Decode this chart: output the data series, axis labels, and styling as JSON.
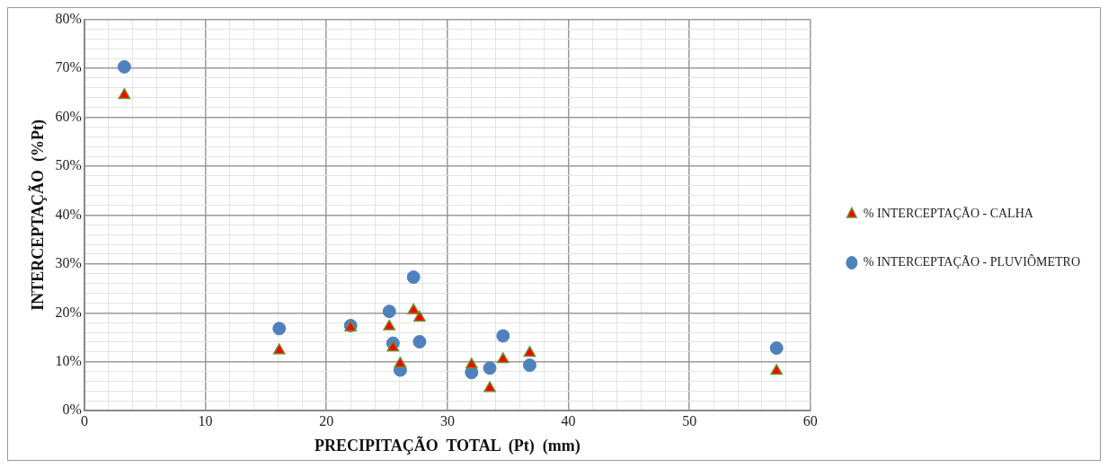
{
  "chart_data": {
    "type": "scatter",
    "xlabel": "PRECIPITAÇÃO  TOTAL  (Pt)  (mm)",
    "ylabel": "INTERCEPTAÇÃO  (%Pt)",
    "xlim": [
      0,
      60
    ],
    "ylim": [
      0,
      80
    ],
    "xticks": [
      0,
      {
        "value": 2,
        "label": null
      },
      {
        "value": 4,
        "label": null
      },
      {
        "value": 6,
        "label": null
      },
      {
        "value": 8,
        "label": null
      },
      10,
      {
        "value": 12,
        "label": null
      },
      {
        "value": 14,
        "label": null
      },
      {
        "value": 16,
        "label": null
      },
      {
        "value": 18,
        "label": null
      },
      20,
      {
        "value": 22,
        "label": null
      },
      {
        "value": 24,
        "label": null
      },
      {
        "value": 26,
        "label": null
      },
      {
        "value": 28,
        "label": null
      },
      30,
      {
        "value": 32,
        "label": null
      },
      {
        "value": 34,
        "label": null
      },
      {
        "value": 36,
        "label": null
      },
      {
        "value": 38,
        "label": null
      },
      40,
      {
        "value": 42,
        "label": null
      },
      {
        "value": 44,
        "label": null
      },
      {
        "value": 46,
        "label": null
      },
      {
        "value": 48,
        "label": null
      },
      50,
      {
        "value": 52,
        "label": null
      },
      {
        "value": 54,
        "label": null
      },
      {
        "value": 56,
        "label": null
      },
      {
        "value": 58,
        "label": null
      },
      60
    ],
    "yticks": [
      {
        "value": 0,
        "label": "0%"
      },
      {
        "value": 2,
        "label": null
      },
      {
        "value": 4,
        "label": null
      },
      {
        "value": 6,
        "label": null
      },
      {
        "value": 8,
        "label": null
      },
      {
        "value": 10,
        "label": "10%"
      },
      {
        "value": 12,
        "label": null
      },
      {
        "value": 14,
        "label": null
      },
      {
        "value": 16,
        "label": null
      },
      {
        "value": 18,
        "label": null
      },
      {
        "value": 20,
        "label": "20%"
      },
      {
        "value": 22,
        "label": null
      },
      {
        "value": 24,
        "label": null
      },
      {
        "value": 26,
        "label": null
      },
      {
        "value": 28,
        "label": null
      },
      {
        "value": 30,
        "label": "30%"
      },
      {
        "value": 32,
        "label": null
      },
      {
        "value": 34,
        "label": null
      },
      {
        "value": 36,
        "label": null
      },
      {
        "value": 38,
        "label": null
      },
      {
        "value": 40,
        "label": "40%"
      },
      {
        "value": 42,
        "label": null
      },
      {
        "value": 44,
        "label": null
      },
      {
        "value": 46,
        "label": null
      },
      {
        "value": 48,
        "label": null
      },
      {
        "value": 50,
        "label": "50%"
      },
      {
        "value": 52,
        "label": null
      },
      {
        "value": 54,
        "label": null
      },
      {
        "value": 56,
        "label": null
      },
      {
        "value": 58,
        "label": null
      },
      {
        "value": 60,
        "label": "60%"
      },
      {
        "value": 62,
        "label": null
      },
      {
        "value": 64,
        "label": null
      },
      {
        "value": 66,
        "label": null
      },
      {
        "value": 68,
        "label": null
      },
      {
        "value": 70,
        "label": "70%"
      },
      {
        "value": 72,
        "label": null
      },
      {
        "value": 74,
        "label": null
      },
      {
        "value": 76,
        "label": null
      },
      {
        "value": 78,
        "label": null
      },
      {
        "value": 80,
        "label": "80%"
      }
    ],
    "grid": true,
    "legend": "right",
    "series": [
      {
        "name": "% INTERCEPTAÇÃO - CALHA",
        "color": "#ff0000",
        "marker": "triangle",
        "x": [
          3.3,
          16.1,
          22,
          25.2,
          25.5,
          26.1,
          27.2,
          27.7,
          32,
          33.5,
          34.6,
          36.8,
          57.2
        ],
        "values": [
          64.5,
          12.3,
          17,
          17.2,
          12.9,
          9.6,
          20.5,
          19,
          9.4,
          4.6,
          10.5,
          11.8,
          8.1
        ]
      },
      {
        "name": "% INTERCEPTAÇÃO - PLUVIÔMETRO",
        "color": "#4f81bd",
        "marker": "circle",
        "x": [
          3.3,
          16.1,
          22,
          25.2,
          25.5,
          26.1,
          27.2,
          27.7,
          32,
          33.5,
          34.6,
          36.8,
          57.2
        ],
        "values": [
          70.3,
          16.8,
          17.4,
          20.3,
          13.8,
          8.3,
          27.3,
          14.1,
          7.8,
          8.7,
          15.3,
          9.3,
          12.8
        ]
      }
    ]
  }
}
